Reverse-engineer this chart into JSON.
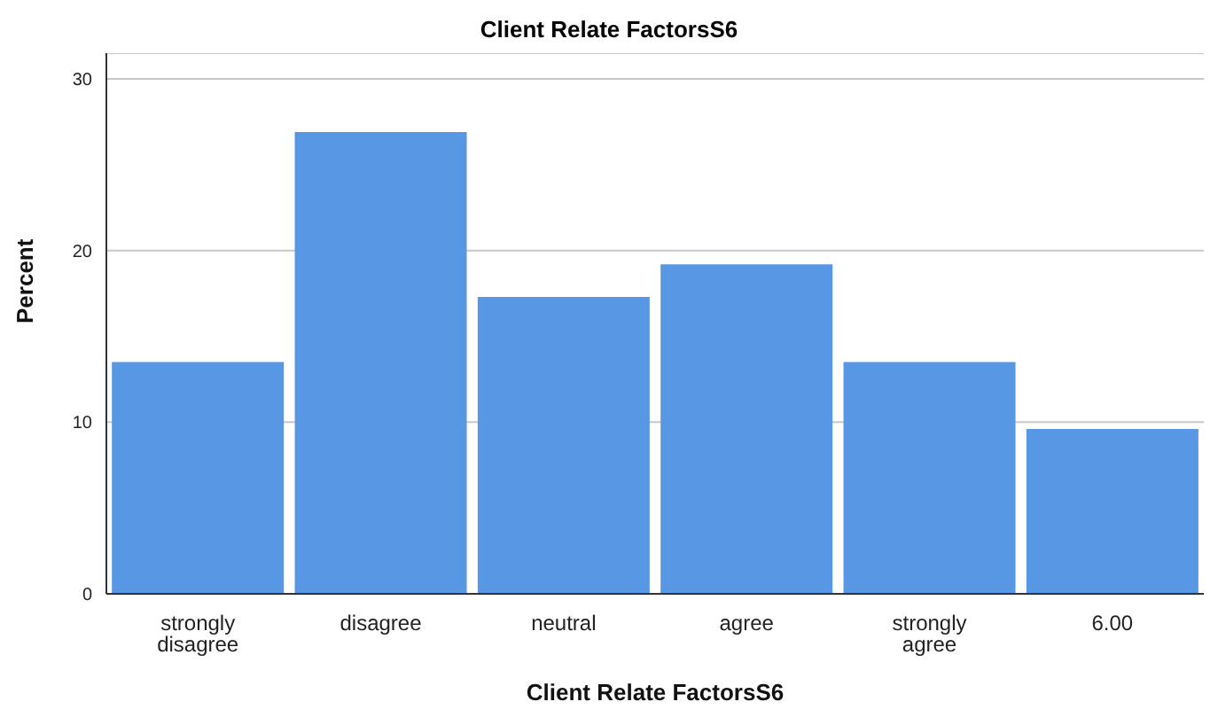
{
  "chart_data": {
    "type": "bar",
    "title": "Client Relate FactorsS6",
    "xlabel": "Client Relate FactorsS6",
    "ylabel": "Percent",
    "categories": [
      "strongly disagree",
      "disagree",
      "neutral",
      "agree",
      "strongly agree",
      "6.00"
    ],
    "values": [
      13.5,
      26.9,
      17.3,
      19.2,
      13.5,
      9.6
    ],
    "color": "#5797e3",
    "ylim": [
      0,
      31.5
    ],
    "yticks": [
      0,
      10,
      20,
      30
    ],
    "grid": "y"
  }
}
